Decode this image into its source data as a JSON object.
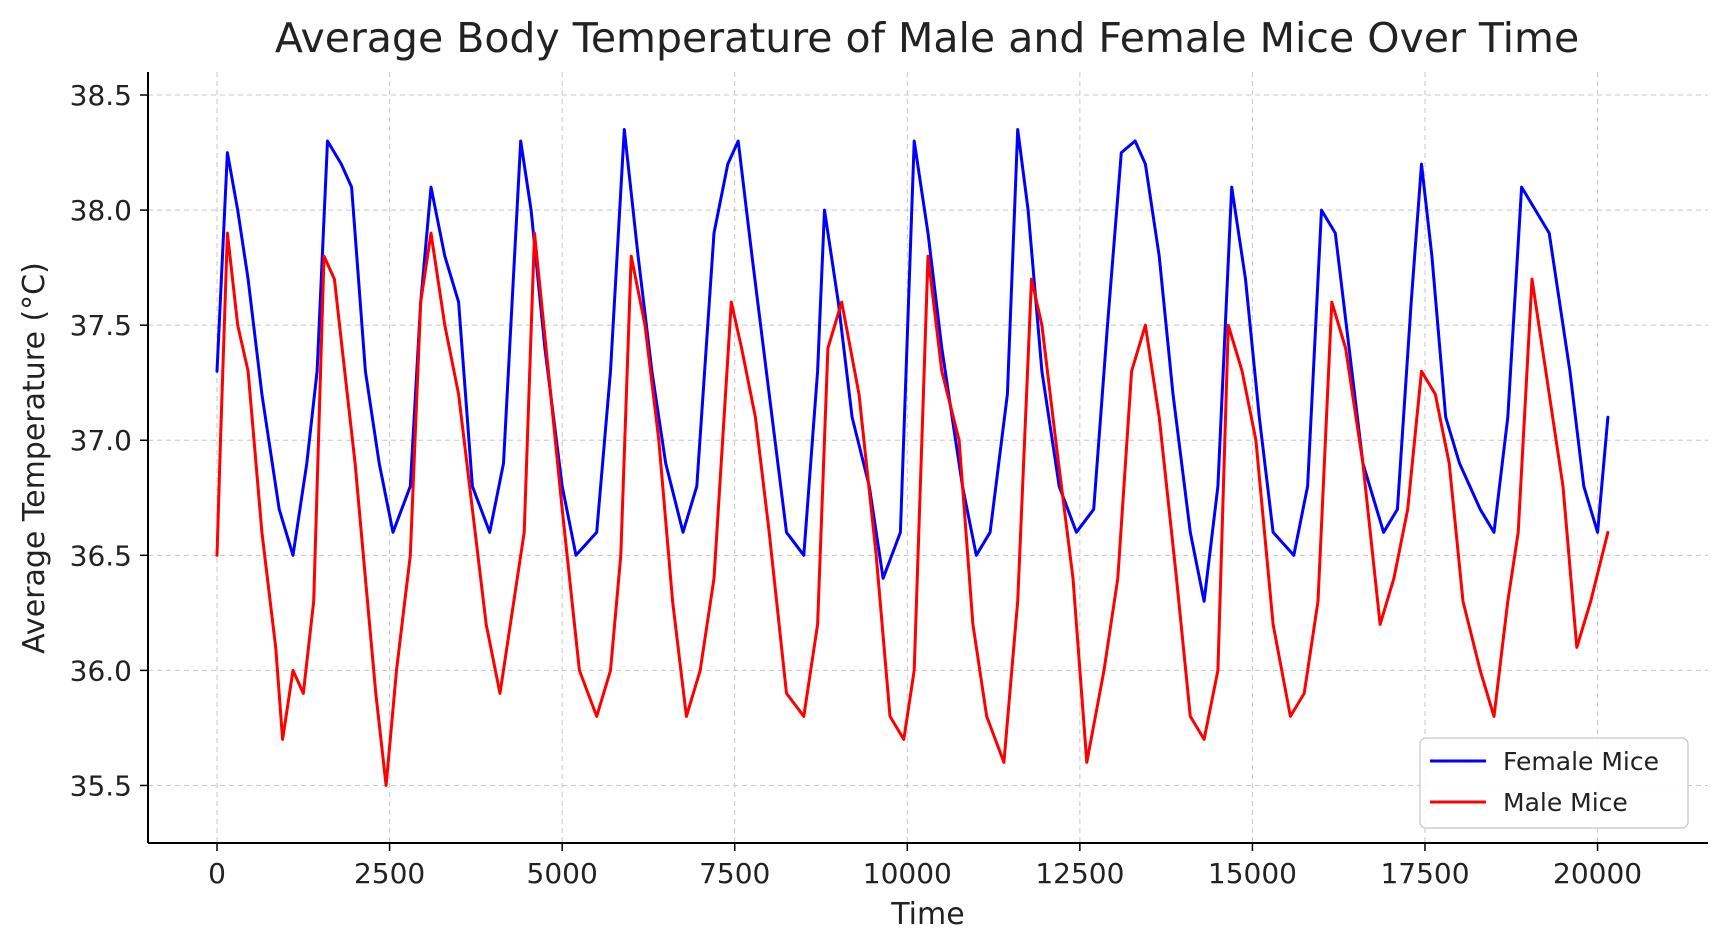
{
  "chart_data": {
    "type": "line",
    "title": "Average Body Temperature of Male and Female Mice Over Time",
    "xlabel": "Time",
    "ylabel": "Average Temperature (°C)",
    "xlim": [
      -1000,
      21600
    ],
    "ylim": [
      35.25,
      38.6
    ],
    "xticks": [
      0,
      2500,
      5000,
      7500,
      10000,
      12500,
      15000,
      17500,
      20000
    ],
    "xtick_labels": [
      "0",
      "2500",
      "5000",
      "7500",
      "10000",
      "12500",
      "15000",
      "17500",
      "20000"
    ],
    "yticks": [
      35.5,
      36.0,
      36.5,
      37.0,
      37.5,
      38.0,
      38.5
    ],
    "ytick_labels": [
      "35.5",
      "36.0",
      "36.5",
      "37.0",
      "37.5",
      "38.0",
      "38.5"
    ],
    "grid": true,
    "legend_position": "bottom-right",
    "series": [
      {
        "name": "Female Mice",
        "color": "#0000ff",
        "x": [
          0,
          150,
          300,
          450,
          650,
          900,
          1100,
          1300,
          1450,
          1600,
          1800,
          1950,
          2150,
          2350,
          2550,
          2800,
          2950,
          3100,
          3300,
          3500,
          3700,
          3950,
          4150,
          4400,
          4550,
          4750,
          5000,
          5200,
          5500,
          5700,
          5900,
          6100,
          6300,
          6500,
          6750,
          6950,
          7200,
          7400,
          7550,
          7750,
          8000,
          8250,
          8500,
          8700,
          8800,
          9000,
          9200,
          9450,
          9650,
          9900,
          10100,
          10300,
          10500,
          10800,
          11000,
          11200,
          11450,
          11600,
          11750,
          11950,
          12200,
          12450,
          12700,
          12900,
          13100,
          13300,
          13450,
          13650,
          13850,
          14100,
          14300,
          14500,
          14700,
          14900,
          15100,
          15300,
          15600,
          15800,
          16000,
          16200,
          16400,
          16600,
          16900,
          17100,
          17300,
          17450,
          17600,
          17800,
          18000,
          18300,
          18500,
          18700,
          18900,
          19100,
          19300,
          19600,
          19800,
          20000,
          20150
        ],
        "y": [
          37.3,
          38.25,
          38.0,
          37.7,
          37.2,
          36.7,
          36.5,
          36.9,
          37.3,
          38.3,
          38.2,
          38.1,
          37.3,
          36.9,
          36.6,
          36.8,
          37.6,
          38.1,
          37.8,
          37.6,
          36.8,
          36.6,
          36.9,
          38.3,
          38.0,
          37.4,
          36.8,
          36.5,
          36.6,
          37.3,
          38.35,
          37.8,
          37.3,
          36.9,
          36.6,
          36.8,
          37.9,
          38.2,
          38.3,
          37.8,
          37.2,
          36.6,
          36.5,
          37.3,
          38.0,
          37.6,
          37.1,
          36.8,
          36.4,
          36.6,
          38.3,
          37.9,
          37.4,
          36.8,
          36.5,
          36.6,
          37.2,
          38.35,
          38.0,
          37.3,
          36.8,
          36.6,
          36.7,
          37.5,
          38.25,
          38.3,
          38.2,
          37.8,
          37.2,
          36.6,
          36.3,
          36.8,
          38.1,
          37.7,
          37.1,
          36.6,
          36.5,
          36.8,
          38.0,
          37.9,
          37.4,
          36.9,
          36.6,
          36.7,
          37.6,
          38.2,
          37.8,
          37.1,
          36.9,
          36.7,
          36.6,
          37.1,
          38.1,
          38.0,
          37.9,
          37.3,
          36.8,
          36.6,
          37.1
        ]
      },
      {
        "name": "Male Mice",
        "color": "#ff0000",
        "x": [
          0,
          50,
          150,
          300,
          450,
          650,
          850,
          950,
          1100,
          1250,
          1400,
          1550,
          1700,
          1850,
          2000,
          2150,
          2300,
          2450,
          2600,
          2800,
          2950,
          3100,
          3300,
          3500,
          3700,
          3900,
          4100,
          4300,
          4450,
          4600,
          4800,
          5000,
          5250,
          5500,
          5700,
          5850,
          6000,
          6200,
          6400,
          6600,
          6800,
          7000,
          7200,
          7450,
          7600,
          7800,
          8000,
          8250,
          8500,
          8700,
          8850,
          9050,
          9300,
          9550,
          9750,
          9950,
          10100,
          10300,
          10500,
          10750,
          10950,
          11150,
          11400,
          11600,
          11800,
          11950,
          12150,
          12400,
          12600,
          12850,
          13050,
          13250,
          13450,
          13650,
          13900,
          14100,
          14300,
          14500,
          14650,
          14850,
          15050,
          15300,
          15550,
          15750,
          15950,
          16150,
          16350,
          16600,
          16850,
          17050,
          17250,
          17450,
          17650,
          17850,
          18050,
          18300,
          18500,
          18700,
          18850,
          19050,
          19250,
          19500,
          19700,
          19900,
          20150
        ],
        "y": [
          36.5,
          37.0,
          37.9,
          37.5,
          37.3,
          36.6,
          36.1,
          35.7,
          36.0,
          35.9,
          36.3,
          37.8,
          37.7,
          37.3,
          36.9,
          36.4,
          35.9,
          35.5,
          36.0,
          36.5,
          37.6,
          37.9,
          37.5,
          37.2,
          36.7,
          36.2,
          35.9,
          36.3,
          36.6,
          37.9,
          37.3,
          36.7,
          36.0,
          35.8,
          36.0,
          36.5,
          37.8,
          37.5,
          37.0,
          36.3,
          35.8,
          36.0,
          36.4,
          37.6,
          37.4,
          37.1,
          36.6,
          35.9,
          35.8,
          36.2,
          37.4,
          37.6,
          37.2,
          36.5,
          35.8,
          35.7,
          36.0,
          37.8,
          37.3,
          37.0,
          36.2,
          35.8,
          35.6,
          36.3,
          37.7,
          37.5,
          37.0,
          36.4,
          35.6,
          36.0,
          36.4,
          37.3,
          37.5,
          37.1,
          36.4,
          35.8,
          35.7,
          36.0,
          37.5,
          37.3,
          37.0,
          36.2,
          35.8,
          35.9,
          36.3,
          37.6,
          37.4,
          36.9,
          36.2,
          36.4,
          36.7,
          37.3,
          37.2,
          36.9,
          36.3,
          36.0,
          35.8,
          36.3,
          36.6,
          37.7,
          37.3,
          36.8,
          36.1,
          36.3,
          36.6
        ]
      }
    ]
  }
}
